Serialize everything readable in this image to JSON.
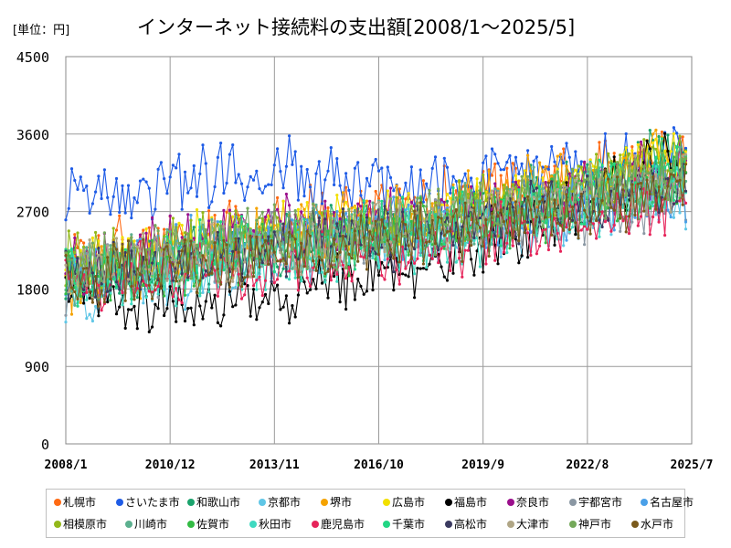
{
  "unit_label": "[単位：円]",
  "chart_data": {
    "type": "line",
    "title": "インターネット接続料の支出額[2008/1～2025/5]",
    "xlabel": "",
    "ylabel": "",
    "x_start": "2008/1",
    "x_end": "2025/5",
    "x_axis_range": [
      "2008/1",
      "2025/7"
    ],
    "x_ticks": [
      "2008/1",
      "2010/12",
      "2013/11",
      "2016/10",
      "2019/9",
      "2022/8",
      "2025/7"
    ],
    "ylim": [
      0,
      4500
    ],
    "y_ticks": [
      "0",
      "900",
      "1800",
      "2700",
      "3600",
      "4500"
    ],
    "grid": true,
    "legend_position": "bottom",
    "series": [
      {
        "name": "札幌市",
        "color": "#ff6a13",
        "values": [
          2100,
          2500,
          2800,
          3300
        ]
      },
      {
        "name": "さいたま市",
        "color": "#1f5ce6",
        "values": [
          2850,
          3200,
          3000,
          3300
        ]
      },
      {
        "name": "和歌山市",
        "color": "#1aa36c",
        "values": [
          1950,
          2300,
          2550,
          3400
        ]
      },
      {
        "name": "京都市",
        "color": "#5fc6e6",
        "values": [
          1700,
          2100,
          2350,
          2900
        ]
      },
      {
        "name": "堺市",
        "color": "#f5a300",
        "values": [
          1850,
          2300,
          2700,
          3400
        ]
      },
      {
        "name": "広島市",
        "color": "#f2e000",
        "values": [
          2000,
          2450,
          2650,
          3300
        ]
      },
      {
        "name": "福島市",
        "color": "#000000",
        "values": [
          1750,
          1600,
          2050,
          3300
        ]
      },
      {
        "name": "奈良市",
        "color": "#9b0f8c",
        "values": [
          2000,
          2500,
          2600,
          3200
        ]
      },
      {
        "name": "宇都宮市",
        "color": "#8a97a3",
        "values": [
          1900,
          2300,
          2450,
          2900
        ]
      },
      {
        "name": "名古屋市",
        "color": "#4aa0e8",
        "values": [
          2050,
          2350,
          2500,
          2900
        ]
      },
      {
        "name": "相模原市",
        "color": "#93b81a",
        "values": [
          2100,
          2350,
          2550,
          3300
        ]
      },
      {
        "name": "川崎市",
        "color": "#5cb08f",
        "values": [
          1950,
          2300,
          2550,
          3100
        ]
      },
      {
        "name": "佐賀市",
        "color": "#33bb44",
        "values": [
          1900,
          2150,
          2450,
          3100
        ]
      },
      {
        "name": "秋田市",
        "color": "#3fd9c0",
        "values": [
          1850,
          2050,
          2350,
          3000
        ]
      },
      {
        "name": "鹿児島市",
        "color": "#e6245a",
        "values": [
          1800,
          2100,
          2250,
          2900
        ]
      },
      {
        "name": "千葉市",
        "color": "#22d684",
        "values": [
          2000,
          2250,
          2500,
          3200
        ]
      },
      {
        "name": "高松市",
        "color": "#3b3a60",
        "values": [
          1900,
          2200,
          2450,
          3000
        ]
      },
      {
        "name": "大津市",
        "color": "#b0a686",
        "values": [
          2000,
          2250,
          2500,
          3100
        ]
      },
      {
        "name": "神戸市",
        "color": "#74a85a",
        "values": [
          2050,
          2350,
          2550,
          3200
        ]
      },
      {
        "name": "水戸市",
        "color": "#7a5a1c",
        "values": [
          1900,
          2150,
          2400,
          2950
        ]
      }
    ],
    "series_note_values_at": [
      "2008/1",
      "2013/1",
      "2018/1",
      "2025/5"
    ]
  }
}
